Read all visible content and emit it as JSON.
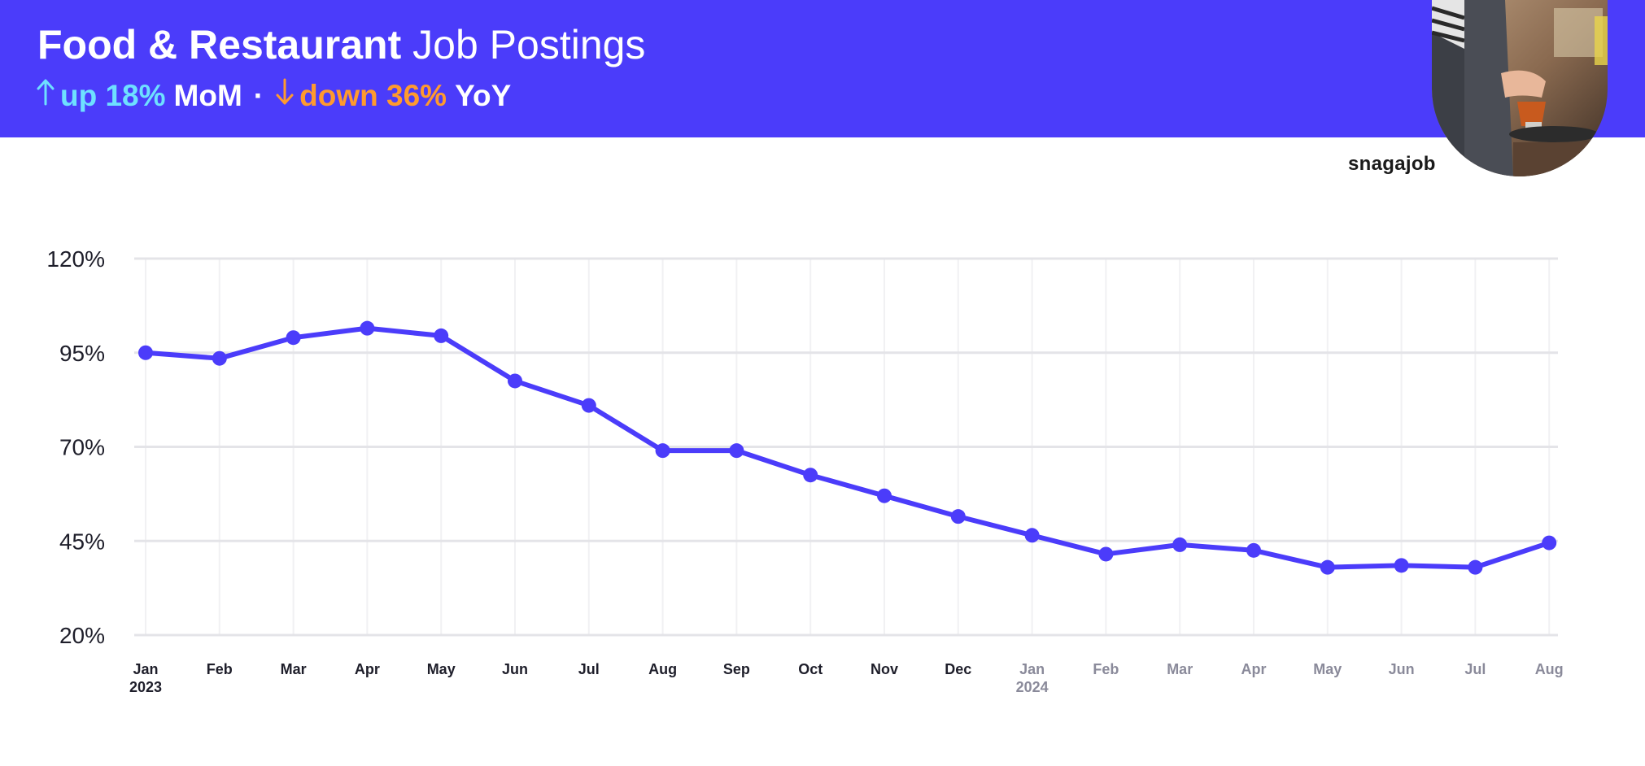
{
  "header": {
    "title_bold": "Food & Restaurant",
    "title_light": "Job Postings",
    "mom": {
      "prefix": "up",
      "value": "18%",
      "label": "MoM",
      "color": "#6ee0ff"
    },
    "separator": "·",
    "yoy": {
      "prefix": "down",
      "value": "36%",
      "label": "YoY",
      "color": "#ff9a2e"
    },
    "background_color": "#4b3cfa",
    "photo": "barista-photo"
  },
  "logo": {
    "text": "snagajob"
  },
  "chart_data": {
    "type": "line",
    "title": "",
    "xlabel": "",
    "ylabel": "",
    "ylim": [
      20,
      120
    ],
    "yticks": [
      "120%",
      "95%",
      "70%",
      "45%",
      "20%"
    ],
    "ytick_values": [
      120,
      95,
      70,
      45,
      20
    ],
    "grid": true,
    "categories": [
      "Jan",
      "Feb",
      "Mar",
      "Apr",
      "May",
      "Jun",
      "Jul",
      "Aug",
      "Sep",
      "Oct",
      "Nov",
      "Dec",
      "Jan",
      "Feb",
      "Mar",
      "Apr",
      "May",
      "Jun",
      "Jul",
      "Aug"
    ],
    "year_labels": [
      {
        "index": 0,
        "text": "2023"
      },
      {
        "index": 12,
        "text": "2024"
      }
    ],
    "series": [
      {
        "values": [
          95,
          93.5,
          99,
          101.5,
          99.5,
          87.5,
          81,
          69,
          69,
          62.5,
          57,
          51.5,
          46.5,
          41.5,
          44,
          42.5,
          38,
          38.5,
          38,
          44.5
        ],
        "color": "#4b3cfa"
      }
    ],
    "label_color_2023": "#1e1e2a",
    "label_color_2024": "#8a8a9a"
  }
}
